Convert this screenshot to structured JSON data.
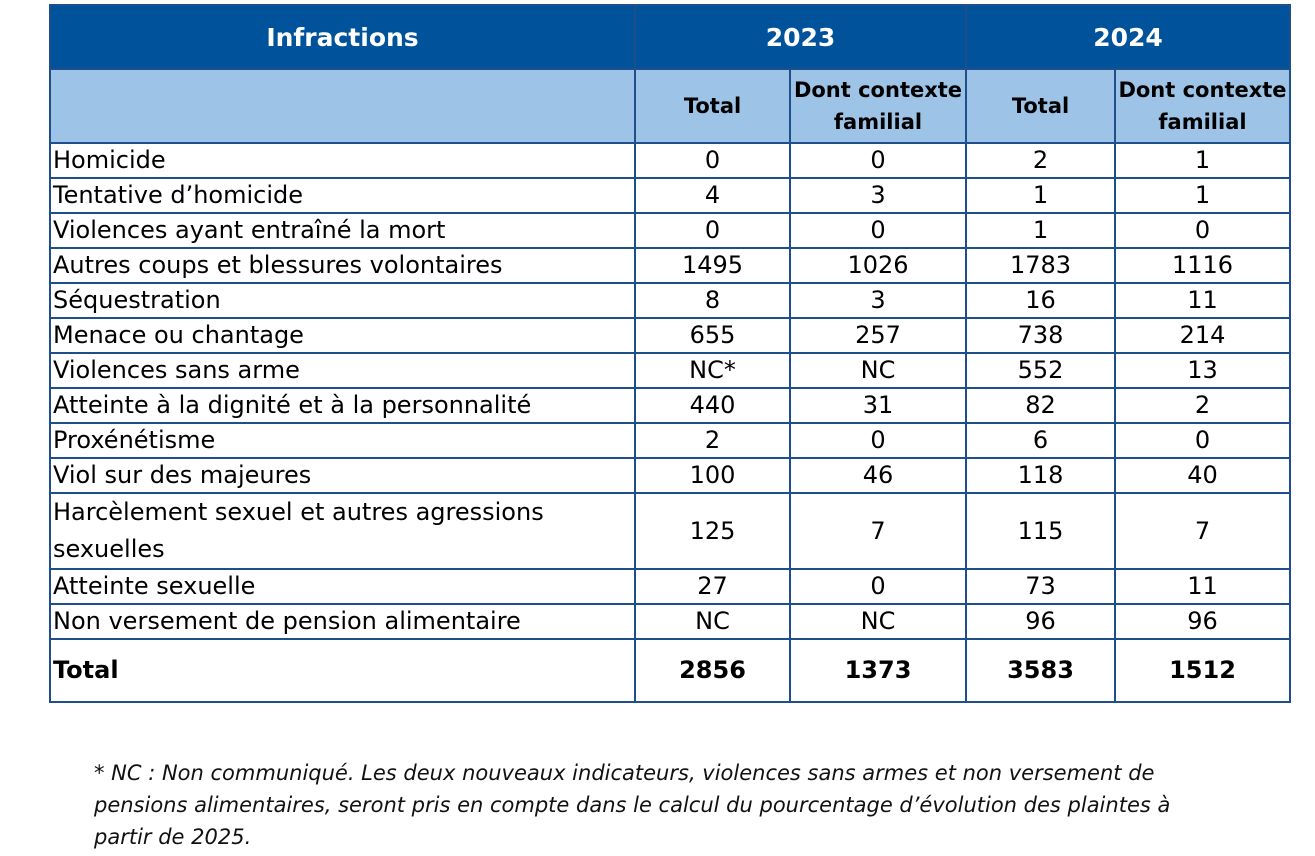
{
  "header": {
    "infractions_label": "Infractions",
    "year_2023": "2023",
    "year_2024": "2024",
    "total_label": "Total",
    "contexte_label": "Dont contexte familial"
  },
  "rows": [
    {
      "label": "Homicide",
      "v2023_total": "0",
      "v2023_familial": "0",
      "v2024_total": "2",
      "v2024_familial": "1"
    },
    {
      "label": "Tentative d’homicide",
      "v2023_total": "4",
      "v2023_familial": "3",
      "v2024_total": "1",
      "v2024_familial": "1"
    },
    {
      "label": "Violences ayant entraîné la mort",
      "v2023_total": "0",
      "v2023_familial": "0",
      "v2024_total": "1",
      "v2024_familial": "0"
    },
    {
      "label": "Autres coups et blessures volontaires",
      "v2023_total": "1495",
      "v2023_familial": "1026",
      "v2024_total": "1783",
      "v2024_familial": "1116"
    },
    {
      "label": "Séquestration",
      "v2023_total": "8",
      "v2023_familial": "3",
      "v2024_total": "16",
      "v2024_familial": "11"
    },
    {
      "label": "Menace ou chantage",
      "v2023_total": "655",
      "v2023_familial": "257",
      "v2024_total": "738",
      "v2024_familial": "214"
    },
    {
      "label": "Violences sans arme",
      "v2023_total": "NC*",
      "v2023_familial": "NC",
      "v2024_total": "552",
      "v2024_familial": "13"
    },
    {
      "label": "Atteinte à la dignité et à la personnalité",
      "v2023_total": "440",
      "v2023_familial": "31",
      "v2024_total": "82",
      "v2024_familial": "2"
    },
    {
      "label": "Proxénétisme",
      "v2023_total": "2",
      "v2023_familial": "0",
      "v2024_total": "6",
      "v2024_familial": "0"
    },
    {
      "label": "Viol sur des majeures",
      "v2023_total": "100",
      "v2023_familial": "46",
      "v2024_total": "118",
      "v2024_familial": "40"
    },
    {
      "label": "Harcèlement sexuel et autres agressions sexuelles",
      "v2023_total": "125",
      "v2023_familial": "7",
      "v2024_total": "115",
      "v2024_familial": "7"
    },
    {
      "label": "Atteinte sexuelle",
      "v2023_total": "27",
      "v2023_familial": "0",
      "v2024_total": "73",
      "v2024_familial": "11"
    },
    {
      "label": "Non versement de pension alimentaire",
      "v2023_total": "NC",
      "v2023_familial": "NC",
      "v2024_total": "96",
      "v2024_familial": "96"
    }
  ],
  "total_row": {
    "label": "Total",
    "v2023_total": "2856",
    "v2023_familial": "1373",
    "v2024_total": "3583",
    "v2024_familial": "1512"
  },
  "footnote": "* NC : Non communiqué. Les deux nouveaux indicateurs, violences sans armes et non versement de pensions alimentaires, seront pris en compte dans le calcul du pourcentage d’évolution des plaintes à partir de 2025."
}
